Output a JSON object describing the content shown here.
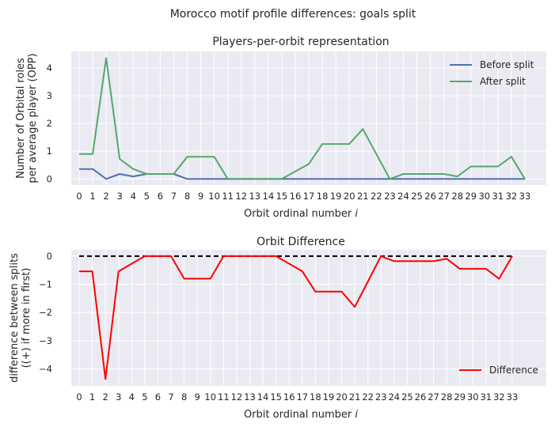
{
  "suptitle": "Morocco motif profile differences: goals split",
  "chart_data": [
    {
      "type": "line",
      "title": "Players-per-orbit representation",
      "xlabel": "Orbit ordinal number",
      "xlabel_var": "i",
      "ylabel": [
        "Number of Orbital roles",
        "per average player (OPP)"
      ],
      "x": [
        0,
        1,
        2,
        3,
        4,
        5,
        6,
        7,
        8,
        9,
        10,
        11,
        12,
        13,
        14,
        15,
        16,
        17,
        18,
        19,
        20,
        21,
        22,
        23,
        24,
        25,
        26,
        27,
        28,
        29,
        30,
        31,
        32,
        33
      ],
      "xticks": [
        "0",
        "1",
        "2",
        "3",
        "4",
        "5",
        "6",
        "7",
        "8",
        "9",
        "10",
        "11",
        "12",
        "13",
        "14",
        "15",
        "16",
        "17",
        "18",
        "19",
        "20",
        "21",
        "22",
        "23",
        "24",
        "25",
        "26",
        "27",
        "28",
        "29",
        "30",
        "31",
        "32",
        "33"
      ],
      "yticks": [
        "0",
        "1",
        "2",
        "3",
        "4"
      ],
      "ylim": [
        -0.22,
        4.6
      ],
      "grid": true,
      "legend_position": "top-right",
      "series": [
        {
          "name": "Before split",
          "color": "#4c72b0",
          "values": [
            0.36,
            0.36,
            0.0,
            0.18,
            0.09,
            0.18,
            0.18,
            0.18,
            0.0,
            0.0,
            0.0,
            0.0,
            0.0,
            0.0,
            0.0,
            0.0,
            0.0,
            0.0,
            0.0,
            0.0,
            0.0,
            0.0,
            0.0,
            0.0,
            0.0,
            0.0,
            0.0,
            0.0,
            0.0,
            0.0,
            0.0,
            0.0,
            0.0,
            0.0
          ]
        },
        {
          "name": "After split",
          "color": "#55a868",
          "values": [
            0.9,
            0.9,
            4.36,
            0.72,
            0.36,
            0.18,
            0.18,
            0.18,
            0.8,
            0.8,
            0.8,
            0.0,
            0.0,
            0.0,
            0.0,
            0.0,
            0.27,
            0.54,
            1.26,
            1.26,
            1.26,
            1.8,
            0.9,
            0.0,
            0.18,
            0.18,
            0.18,
            0.18,
            0.09,
            0.45,
            0.45,
            0.45,
            0.8,
            0.0
          ]
        }
      ]
    },
    {
      "type": "line",
      "title": "Orbit Difference",
      "xlabel": "Orbit ordinal number",
      "xlabel_var": "i",
      "ylabel": [
        "difference between splits",
        "((+) if more in first)"
      ],
      "x": [
        0,
        1,
        2,
        3,
        4,
        5,
        6,
        7,
        8,
        9,
        10,
        11,
        12,
        13,
        14,
        15,
        16,
        17,
        18,
        19,
        20,
        21,
        22,
        23,
        24,
        25,
        26,
        27,
        28,
        29,
        30,
        31,
        32,
        33
      ],
      "xticks": [
        "0",
        "1",
        "2",
        "3",
        "4",
        "5",
        "6",
        "7",
        "8",
        "9",
        "10",
        "11",
        "12",
        "13",
        "14",
        "15",
        "16",
        "17",
        "18",
        "19",
        "20",
        "21",
        "22",
        "23",
        "24",
        "25",
        "26",
        "27",
        "28",
        "29",
        "30",
        "31",
        "32",
        "33"
      ],
      "yticks": [
        "0",
        "−1",
        "−2",
        "−3",
        "−4"
      ],
      "ylim": [
        -4.6,
        0.22
      ],
      "grid": true,
      "legend_position": "bottom-right",
      "zero_line": {
        "y": 0,
        "color": "#000000",
        "style": "dashed"
      },
      "series": [
        {
          "name": "Difference",
          "color": "#ff0000",
          "values": [
            -0.54,
            -0.54,
            -4.36,
            -0.54,
            -0.27,
            0.0,
            0.0,
            0.0,
            -0.8,
            -0.8,
            -0.8,
            0.0,
            0.0,
            0.0,
            0.0,
            0.0,
            -0.27,
            -0.54,
            -1.26,
            -1.26,
            -1.26,
            -1.8,
            -0.9,
            0.0,
            -0.18,
            -0.18,
            -0.18,
            -0.18,
            -0.09,
            -0.45,
            -0.45,
            -0.45,
            -0.8,
            0.0
          ]
        }
      ]
    }
  ]
}
